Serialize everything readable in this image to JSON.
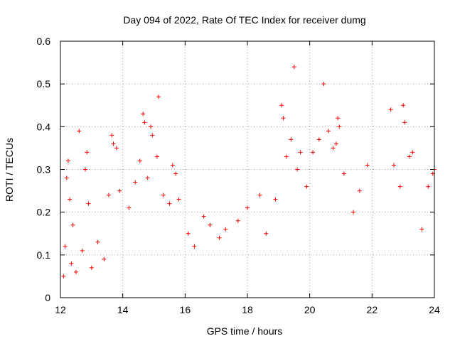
{
  "chart_data": {
    "type": "scatter",
    "title": "Day 094 of 2022, Rate Of TEC Index for receiver dumg",
    "xlabel": "GPS time / hours",
    "ylabel": "ROTI / TECUs",
    "xlim": [
      12,
      24
    ],
    "ylim": [
      0,
      0.6
    ],
    "x_ticks": [
      "12",
      "14",
      "16",
      "18",
      "20",
      "22",
      "24"
    ],
    "y_ticks": [
      "0",
      "0.1",
      "0.2",
      "0.3",
      "0.4",
      "0.5",
      "0.6"
    ],
    "grid": true,
    "marker": "+",
    "colors": {
      "points": "#ff0000",
      "grid": "#a0a0a0",
      "axes": "#000000"
    },
    "series": [
      {
        "points": [
          [
            12.1,
            0.05
          ],
          [
            12.15,
            0.12
          ],
          [
            12.2,
            0.28
          ],
          [
            12.25,
            0.32
          ],
          [
            12.3,
            0.23
          ],
          [
            12.35,
            0.08
          ],
          [
            12.4,
            0.17
          ],
          [
            12.5,
            0.06
          ],
          [
            12.6,
            0.39
          ],
          [
            12.7,
            0.11
          ],
          [
            12.8,
            0.3
          ],
          [
            12.85,
            0.34
          ],
          [
            12.9,
            0.22
          ],
          [
            13.0,
            0.07
          ],
          [
            13.2,
            0.13
          ],
          [
            13.4,
            0.09
          ],
          [
            13.55,
            0.24
          ],
          [
            13.65,
            0.38
          ],
          [
            13.7,
            0.36
          ],
          [
            13.8,
            0.35
          ],
          [
            13.9,
            0.25
          ],
          [
            14.2,
            0.21
          ],
          [
            14.4,
            0.27
          ],
          [
            14.55,
            0.32
          ],
          [
            14.65,
            0.43
          ],
          [
            14.7,
            0.41
          ],
          [
            14.8,
            0.28
          ],
          [
            14.9,
            0.4
          ],
          [
            14.95,
            0.38
          ],
          [
            15.1,
            0.33
          ],
          [
            15.15,
            0.47
          ],
          [
            15.3,
            0.24
          ],
          [
            15.5,
            0.22
          ],
          [
            15.6,
            0.31
          ],
          [
            15.7,
            0.29
          ],
          [
            15.8,
            0.23
          ],
          [
            16.1,
            0.15
          ],
          [
            16.3,
            0.12
          ],
          [
            16.6,
            0.19
          ],
          [
            16.8,
            0.17
          ],
          [
            17.1,
            0.14
          ],
          [
            17.3,
            0.16
          ],
          [
            17.7,
            0.18
          ],
          [
            18.0,
            0.21
          ],
          [
            18.4,
            0.24
          ],
          [
            18.6,
            0.15
          ],
          [
            18.9,
            0.23
          ],
          [
            19.1,
            0.45
          ],
          [
            19.15,
            0.42
          ],
          [
            19.25,
            0.33
          ],
          [
            19.4,
            0.37
          ],
          [
            19.5,
            0.54
          ],
          [
            19.6,
            0.3
          ],
          [
            19.7,
            0.34
          ],
          [
            19.9,
            0.26
          ],
          [
            20.1,
            0.34
          ],
          [
            20.3,
            0.37
          ],
          [
            20.45,
            0.5
          ],
          [
            20.6,
            0.39
          ],
          [
            20.75,
            0.35
          ],
          [
            20.85,
            0.36
          ],
          [
            20.9,
            0.42
          ],
          [
            20.95,
            0.4
          ],
          [
            21.1,
            0.29
          ],
          [
            21.4,
            0.2
          ],
          [
            21.6,
            0.25
          ],
          [
            21.85,
            0.31
          ],
          [
            22.6,
            0.44
          ],
          [
            22.7,
            0.31
          ],
          [
            22.9,
            0.26
          ],
          [
            23.0,
            0.45
          ],
          [
            23.05,
            0.41
          ],
          [
            23.2,
            0.33
          ],
          [
            23.3,
            0.34
          ],
          [
            23.6,
            0.16
          ],
          [
            23.8,
            0.26
          ],
          [
            23.95,
            0.29
          ],
          [
            24.0,
            0.3
          ]
        ]
      }
    ]
  }
}
